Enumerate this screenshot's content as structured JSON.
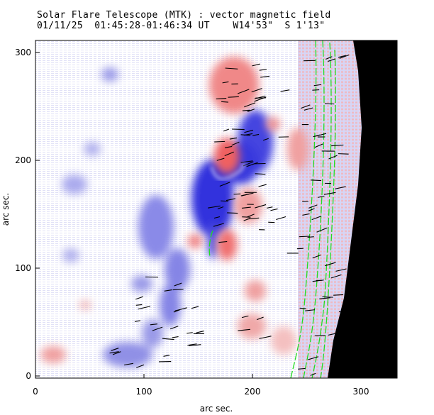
{
  "chart_data": {
    "type": "heatmap",
    "title": "Solar Flare Telescope (MTK) : vector magnetic field",
    "subtitle": {
      "date": "01/11/25",
      "time_range": "01:45:28-01:46:34 UT",
      "position_w": "W14'53\"",
      "position_s": "S 1'13\""
    },
    "xlabel": "arc sec.",
    "ylabel": "arc sec.",
    "xlim": [
      0,
      333
    ],
    "ylim": [
      0,
      311
    ],
    "xticks": [
      "0",
      "100",
      "200",
      "300"
    ],
    "yticks": [
      "0",
      "100",
      "200",
      "300"
    ],
    "legend": "none",
    "colors": {
      "positive": "#f08a8a",
      "negative": "#4a4ae0",
      "neutral_line": "#22dd22",
      "vectors": "#000000",
      "off_limb": "#000000"
    }
  }
}
